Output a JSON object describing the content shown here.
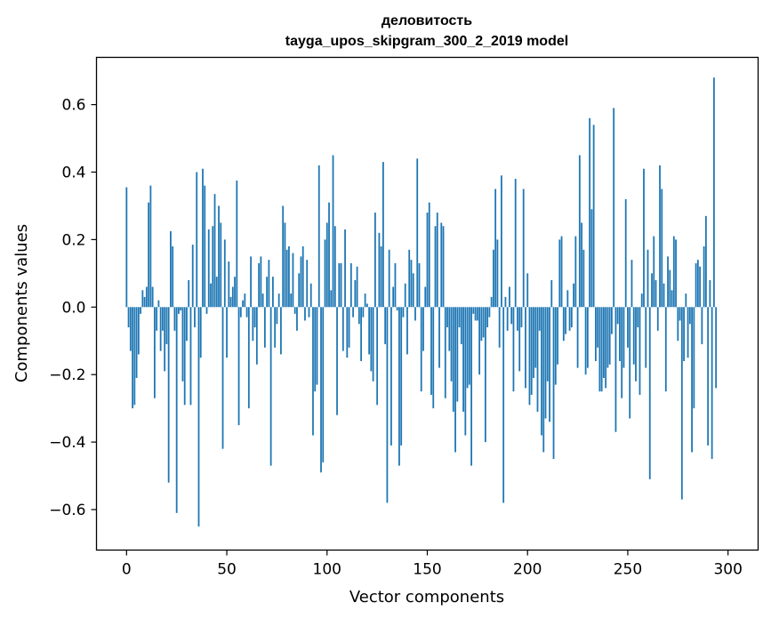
{
  "chart_data": {
    "type": "bar",
    "title": "деловитость",
    "subtitle": "tayga_upos_skipgram_300_2_2019 model",
    "xlabel": "Vector components",
    "ylabel": "Components values",
    "xlim": [
      -15,
      315
    ],
    "ylim": [
      -0.72,
      0.74
    ],
    "xticks": [
      0,
      50,
      100,
      150,
      200,
      250,
      300
    ],
    "yticks": [
      -0.6,
      -0.4,
      -0.2,
      0.0,
      0.2,
      0.4,
      0.6
    ],
    "xtick_labels": [
      "0",
      "50",
      "100",
      "150",
      "200",
      "250",
      "300"
    ],
    "ytick_labels": [
      "−0.6",
      "−0.4",
      "−0.2",
      "0.0",
      "0.2",
      "0.4",
      "0.6"
    ],
    "grid": false,
    "bar_color": "#1f77b4",
    "values": [
      0.355,
      -0.06,
      -0.13,
      -0.3,
      -0.29,
      -0.21,
      -0.14,
      -0.02,
      0.05,
      0.03,
      0.06,
      0.31,
      0.36,
      0.06,
      -0.27,
      -0.07,
      0.02,
      -0.13,
      -0.07,
      -0.19,
      -0.11,
      -0.52,
      0.225,
      0.18,
      -0.07,
      -0.61,
      -0.02,
      -0.01,
      -0.22,
      -0.29,
      -0.1,
      0.08,
      -0.29,
      0.185,
      -0.06,
      0.4,
      -0.65,
      -0.15,
      0.41,
      0.36,
      -0.02,
      0.23,
      0.07,
      0.24,
      0.335,
      0.09,
      0.3,
      0.25,
      -0.42,
      0.2,
      -0.15,
      0.135,
      0.03,
      0.06,
      0.09,
      0.375,
      -0.35,
      -0.03,
      0.02,
      0.04,
      -0.03,
      -0.3,
      0.15,
      -0.1,
      -0.06,
      -0.17,
      0.13,
      0.15,
      0.04,
      -0.12,
      0.09,
      0.14,
      -0.47,
      0.09,
      -0.12,
      -0.05,
      0.04,
      -0.14,
      0.3,
      0.25,
      0.17,
      0.18,
      0.04,
      0.16,
      -0.02,
      -0.07,
      0.1,
      0.15,
      0.18,
      -0.04,
      0.14,
      -0.03,
      0.07,
      -0.38,
      -0.25,
      -0.23,
      0.42,
      -0.49,
      -0.46,
      0.2,
      0.25,
      0.31,
      0.05,
      0.45,
      0.24,
      -0.32,
      0.13,
      0.13,
      -0.13,
      0.23,
      -0.15,
      -0.12,
      0.13,
      -0.03,
      0.08,
      0.12,
      -0.05,
      -0.16,
      -0.03,
      0.04,
      0.01,
      -0.14,
      -0.19,
      -0.22,
      0.28,
      -0.29,
      0.22,
      0.18,
      0.43,
      -0.11,
      -0.58,
      0.17,
      -0.41,
      0.06,
      0.13,
      -0.01,
      -0.47,
      -0.41,
      -0.03,
      0.07,
      -0.14,
      0.17,
      0.14,
      0.1,
      -0.04,
      0.44,
      0.13,
      -0.25,
      -0.13,
      0.06,
      0.28,
      0.31,
      -0.26,
      -0.3,
      0.24,
      0.28,
      -0.18,
      0.25,
      0.24,
      -0.27,
      -0.06,
      -0.13,
      -0.22,
      -0.31,
      -0.43,
      -0.28,
      -0.06,
      -0.11,
      -0.31,
      -0.38,
      -0.24,
      -0.23,
      -0.47,
      -0.02,
      -0.04,
      -0.04,
      -0.2,
      -0.1,
      -0.09,
      -0.4,
      -0.06,
      -0.03,
      0.03,
      0.17,
      0.35,
      0.2,
      -0.12,
      0.39,
      -0.58,
      0.03,
      -0.07,
      0.06,
      -0.05,
      -0.25,
      0.38,
      -0.07,
      -0.19,
      -0.06,
      0.35,
      -0.24,
      0.1,
      -0.29,
      -0.26,
      -0.21,
      -0.18,
      -0.31,
      -0.07,
      -0.38,
      -0.43,
      -0.33,
      -0.22,
      -0.34,
      0.08,
      -0.45,
      -0.23,
      -0.17,
      0.2,
      0.21,
      -0.1,
      -0.08,
      0.05,
      -0.07,
      -0.06,
      0.07,
      0.21,
      -0.18,
      0.45,
      0.25,
      0.17,
      -0.2,
      -0.18,
      0.56,
      0.29,
      0.54,
      -0.16,
      -0.12,
      -0.25,
      -0.25,
      -0.21,
      -0.24,
      -0.18,
      -0.17,
      -0.08,
      0.59,
      -0.37,
      -0.05,
      -0.16,
      -0.27,
      -0.18,
      0.32,
      -0.12,
      -0.33,
      0.14,
      -0.17,
      -0.22,
      -0.06,
      -0.26,
      0.04,
      0.41,
      -0.18,
      0.17,
      -0.51,
      0.1,
      0.21,
      0.08,
      -0.07,
      0.42,
      0.35,
      0.07,
      -0.25,
      0.15,
      0.11,
      0.05,
      0.21,
      0.2,
      -0.1,
      -0.04,
      -0.57,
      -0.16,
      0.04,
      -0.15,
      -0.05,
      -0.43,
      -0.3,
      0.13,
      0.14,
      0.12,
      -0.11,
      0.18,
      0.27,
      -0.41,
      0.08,
      -0.45,
      0.68,
      -0.24
    ]
  }
}
